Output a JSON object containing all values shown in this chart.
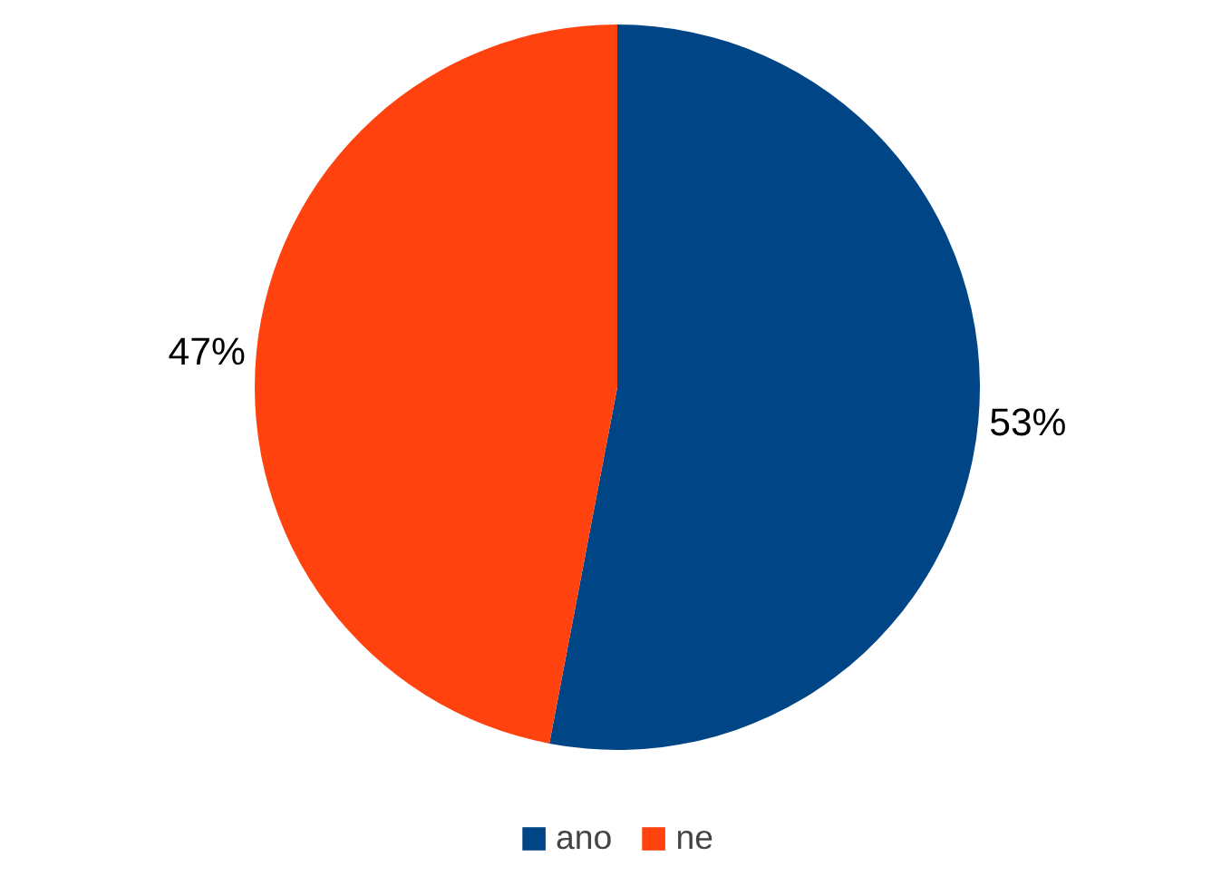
{
  "chart_data": {
    "type": "pie",
    "categories": [
      "ano",
      "ne"
    ],
    "values": [
      53,
      47
    ],
    "colors": [
      "#004586",
      "#ff420e"
    ],
    "value_labels": [
      "53%",
      "47%"
    ],
    "legend": "bottom"
  }
}
